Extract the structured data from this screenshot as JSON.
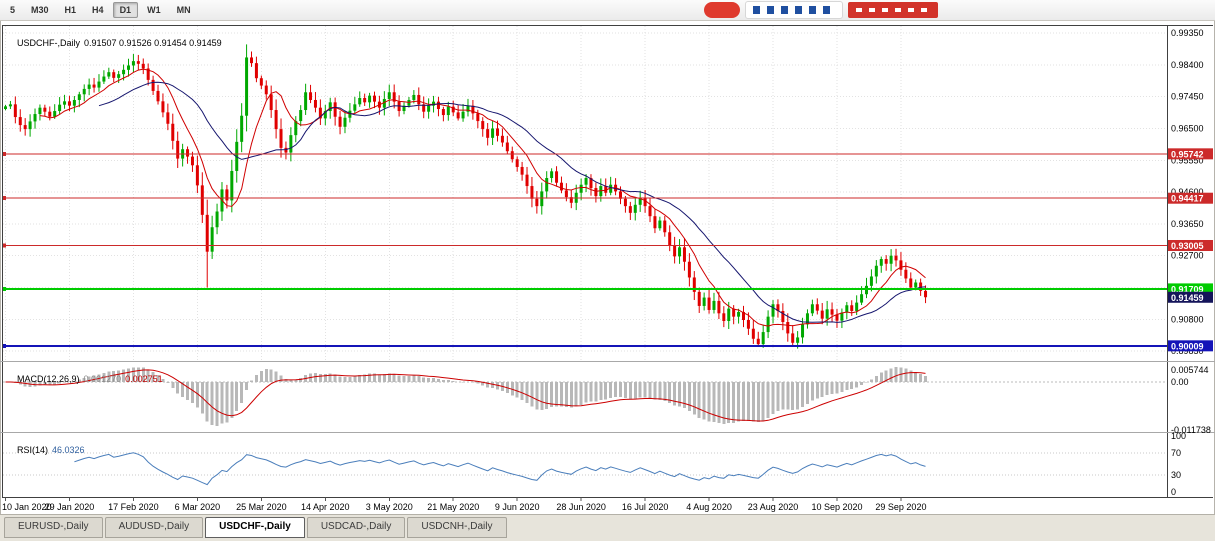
{
  "toolbar": {
    "timeframes": [
      "5",
      "M30",
      "H1",
      "H4",
      "D1",
      "W1",
      "MN"
    ],
    "active_timeframe": "D1"
  },
  "main_chart": {
    "title_symbol": "USDCHF-,Daily",
    "title_ohlc": "0.91507 0.91526 0.91454 0.91459"
  },
  "macd_panel": {
    "name": "MACD(12,26,9)",
    "value_main": "0.001270",
    "value_signal": "0.002751",
    "axis_labels": [
      "0.005744",
      "0.00",
      "-0.011738"
    ]
  },
  "rsi_panel": {
    "name": "RSI(14)",
    "value": "46.0326",
    "axis_labels": [
      "100",
      "70",
      "30",
      "0"
    ],
    "levels": [
      70,
      30
    ]
  },
  "tabs": [
    {
      "label": "EURUSD-,Daily",
      "active": false
    },
    {
      "label": "AUDUSD-,Daily",
      "active": false
    },
    {
      "label": "USDCHF-,Daily",
      "active": true
    },
    {
      "label": "USDCAD-,Daily",
      "active": false
    },
    {
      "label": "USDCNH-,Daily",
      "active": false
    }
  ],
  "colors": {
    "candle_up": "#00a800",
    "candle_down": "#e00000",
    "ma_fast": "#d00000",
    "ma_slow": "#16166e",
    "macd_hist": "#b8b8b8",
    "macd_signal": "#cc0000",
    "rsi_line": "#4a7ebb",
    "bid_tag": "#14145a",
    "grid": "#e2e2e2",
    "frame": "#404040",
    "splitter": "#a8a8a8"
  },
  "chart_data": {
    "type": "candlestick",
    "symbol": "USDCHF",
    "timeframe": "Daily",
    "y_axis": {
      "labels": [
        "0.99350",
        "0.98400",
        "0.97450",
        "0.96500",
        "0.95550",
        "0.94600",
        "0.93650",
        "0.92700",
        "0.91750",
        "0.90800",
        "0.89850"
      ]
    },
    "x_tick_labels": [
      "10 Jan 2020",
      "29 Jan 2020",
      "17 Feb 2020",
      "6 Mar 2020",
      "25 Mar 2020",
      "14 Apr 2020",
      "3 May 2020",
      "21 May 2020",
      "9 Jun 2020",
      "28 Jun 2020",
      "16 Jul 2020",
      "4 Aug 2020",
      "23 Aug 2020",
      "10 Sep 2020",
      "29 Sep 2020"
    ],
    "x_tick_step": 13,
    "levels": [
      {
        "price": 0.95742,
        "label": "0.95742",
        "color": "#cc2a2a",
        "width": 1
      },
      {
        "price": 0.94417,
        "label": "0.94417",
        "color": "#cc2a2a",
        "width": 1
      },
      {
        "price": 0.93005,
        "label": "0.93005",
        "color": "#cc2a2a",
        "width": 1
      },
      {
        "price": 0.91709,
        "label": "0.91709",
        "color": "#00cc00",
        "width": 2
      },
      {
        "price": 0.90009,
        "label": "0.90009",
        "color": "#1414b8",
        "width": 2
      }
    ],
    "bid": {
      "price": 0.91459,
      "label": "0.91459"
    },
    "indicators": {
      "ma_fast_period": 8,
      "ma_slow_period": 20,
      "macd": {
        "fast": 12,
        "slow": 26,
        "signal": 9
      },
      "rsi_period": 14
    },
    "closes": [
      0.9716,
      0.9722,
      0.9684,
      0.966,
      0.9648,
      0.9671,
      0.9693,
      0.9712,
      0.97,
      0.9685,
      0.9702,
      0.9721,
      0.9731,
      0.9718,
      0.9735,
      0.9752,
      0.9768,
      0.9781,
      0.9772,
      0.979,
      0.9805,
      0.9818,
      0.9801,
      0.9812,
      0.9825,
      0.9838,
      0.9851,
      0.9843,
      0.9829,
      0.9795,
      0.9762,
      0.9731,
      0.9698,
      0.9664,
      0.9613,
      0.956,
      0.9588,
      0.9566,
      0.954,
      0.948,
      0.9392,
      0.9282,
      0.9355,
      0.9402,
      0.9468,
      0.9435,
      0.9523,
      0.961,
      0.9688,
      0.9862,
      0.9845,
      0.98,
      0.9778,
      0.9752,
      0.9705,
      0.9648,
      0.9592,
      0.9578,
      0.963,
      0.9672,
      0.9705,
      0.9758,
      0.9735,
      0.9712,
      0.968,
      0.9702,
      0.9728,
      0.9685,
      0.9655,
      0.9682,
      0.9703,
      0.9722,
      0.9741,
      0.9728,
      0.9748,
      0.973,
      0.9712,
      0.9738,
      0.9758,
      0.973,
      0.9702,
      0.9718,
      0.9735,
      0.975,
      0.9722,
      0.97,
      0.9718,
      0.973,
      0.9708,
      0.969,
      0.9715,
      0.9698,
      0.968,
      0.97,
      0.9718,
      0.9695,
      0.9672,
      0.9648,
      0.9622,
      0.965,
      0.9628,
      0.9608,
      0.9582,
      0.9558,
      0.9535,
      0.9512,
      0.9478,
      0.944,
      0.9418,
      0.9462,
      0.9502,
      0.9522,
      0.9488,
      0.9465,
      0.9445,
      0.9428,
      0.9458,
      0.9482,
      0.9502,
      0.9472,
      0.9448,
      0.9478,
      0.9458,
      0.9482,
      0.9462,
      0.944,
      0.9418,
      0.9398,
      0.9422,
      0.9442,
      0.9418,
      0.9388,
      0.9352,
      0.9375,
      0.934,
      0.9302,
      0.9268,
      0.9295,
      0.9252,
      0.9205,
      0.9162,
      0.912,
      0.9145,
      0.9108,
      0.9135,
      0.9098,
      0.9075,
      0.9112,
      0.9088,
      0.9102,
      0.9078,
      0.9052,
      0.9022,
      0.9006,
      0.9042,
      0.9088,
      0.9125,
      0.9105,
      0.9072,
      0.9038,
      0.901,
      0.9026,
      0.9065,
      0.9098,
      0.9125,
      0.9106,
      0.9082,
      0.911,
      0.9094,
      0.9076,
      0.91,
      0.9122,
      0.9105,
      0.913,
      0.9155,
      0.918,
      0.9208,
      0.924,
      0.926,
      0.9246,
      0.927,
      0.9256,
      0.9228,
      0.9202,
      0.9175,
      0.919,
      0.9165,
      0.9146
    ],
    "specials": [
      {
        "i": 41,
        "low": 0.9175
      },
      {
        "i": 49,
        "high": 0.9901
      },
      {
        "i": 153,
        "low": 0.8998
      },
      {
        "i": 160,
        "low": 0.9002
      }
    ]
  }
}
